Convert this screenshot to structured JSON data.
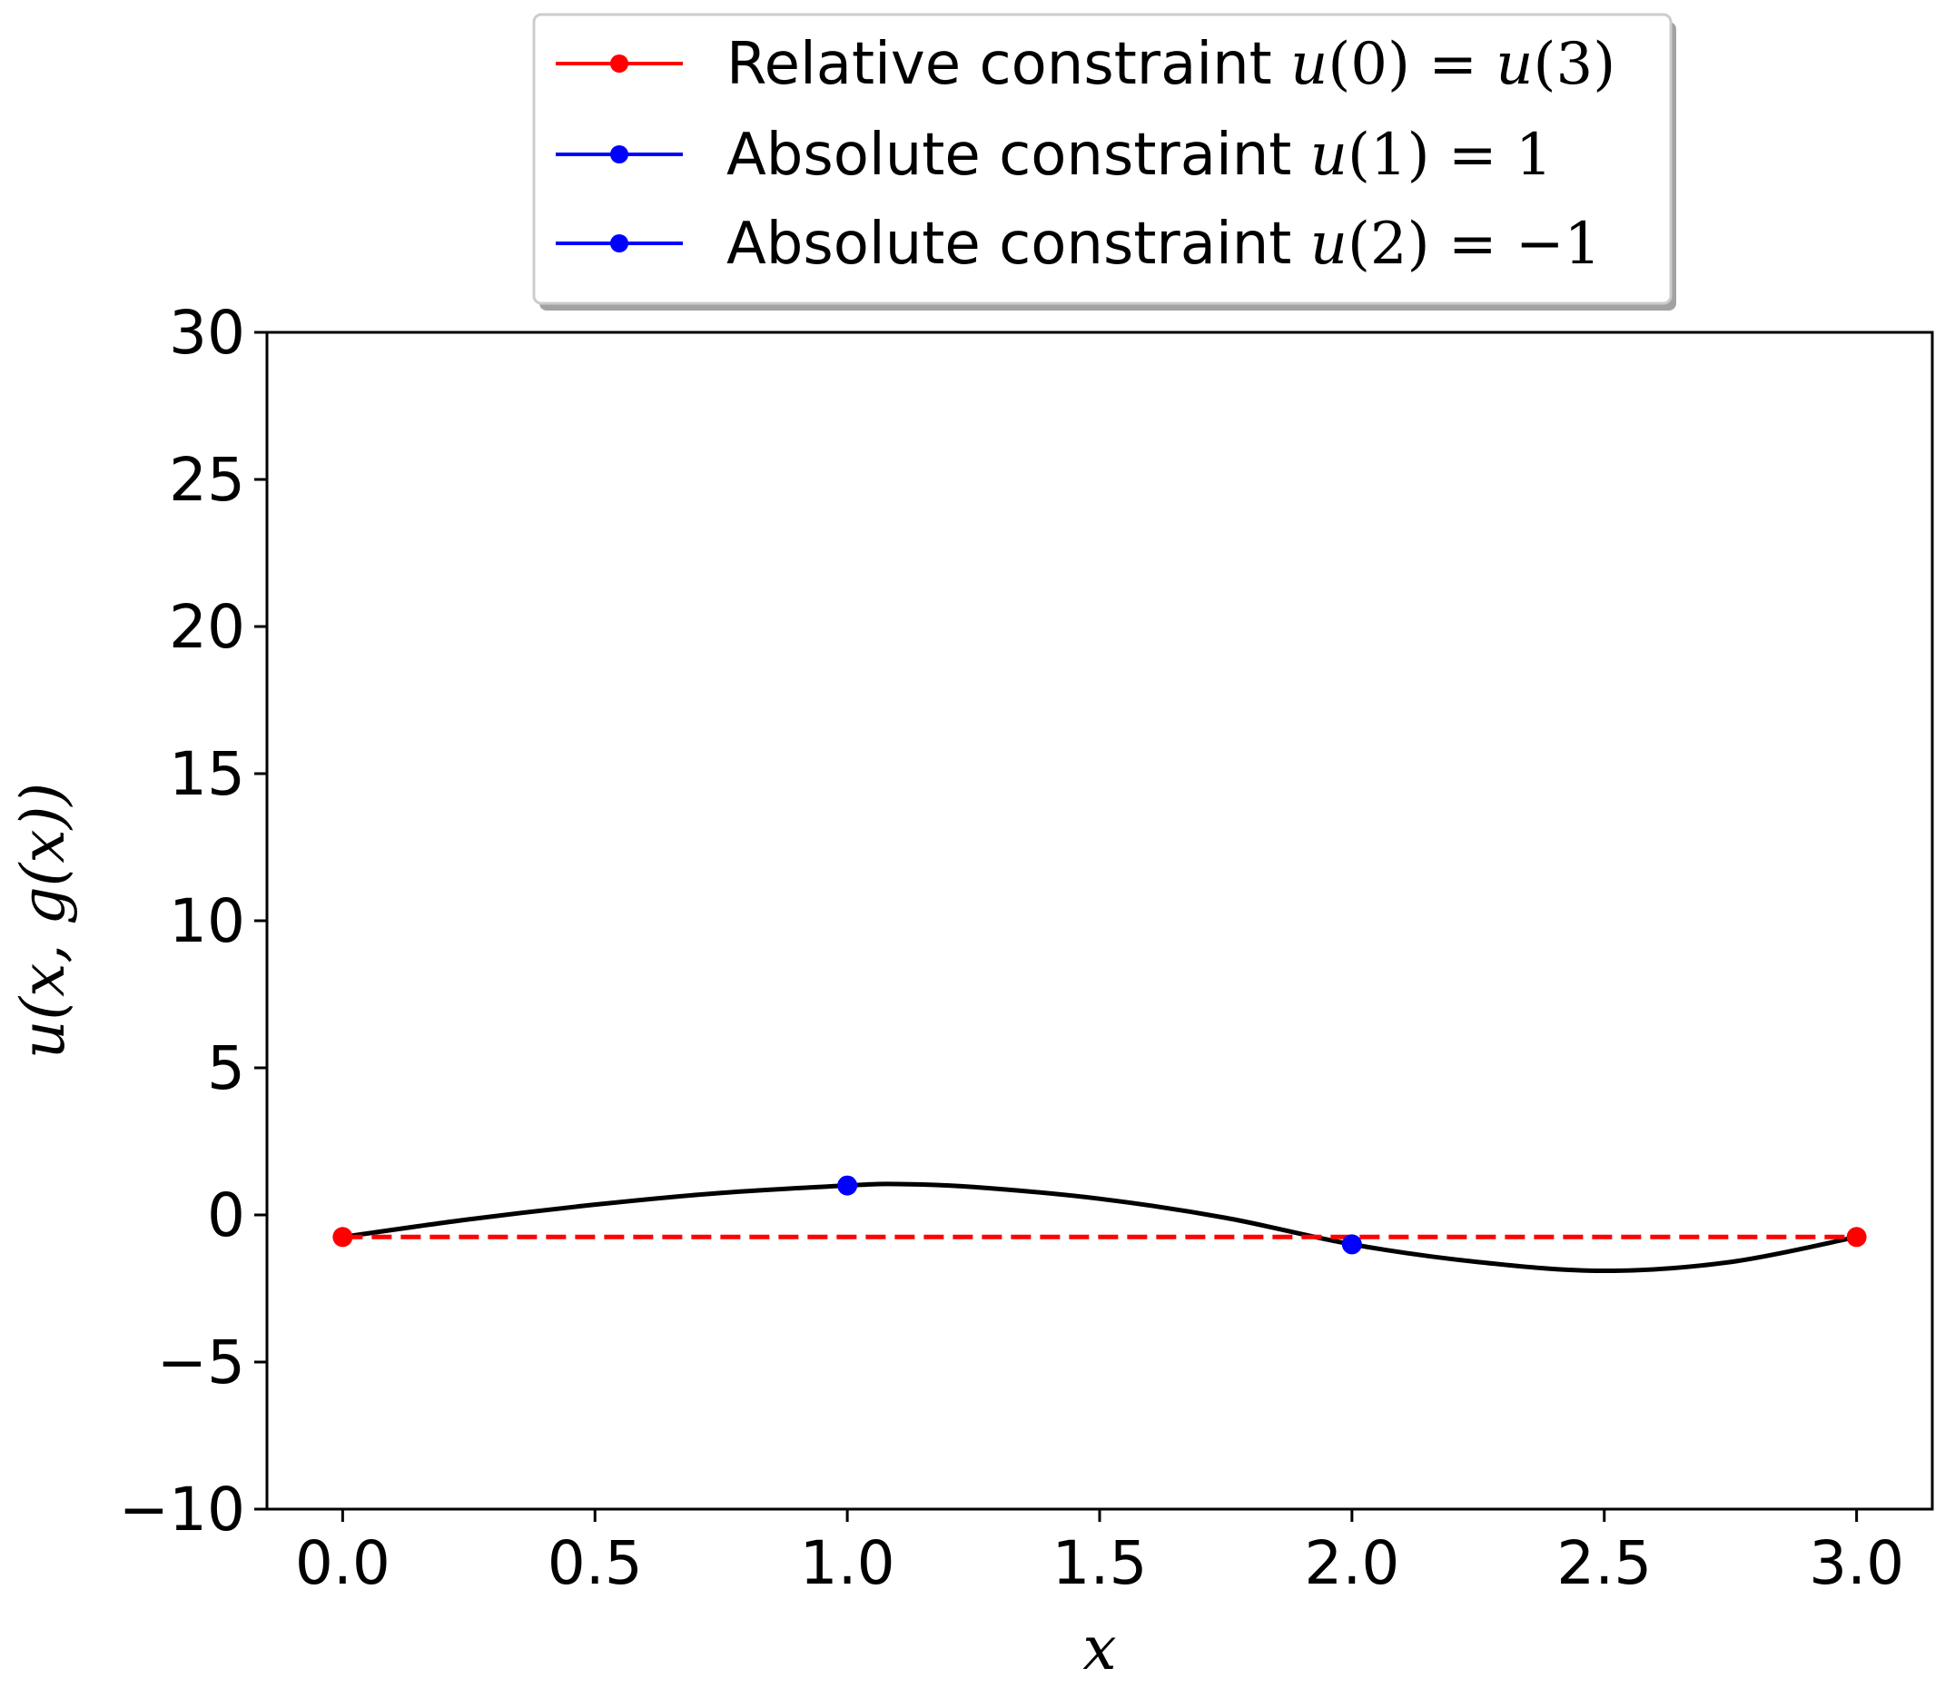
{
  "chart_data": {
    "type": "line",
    "title": "",
    "xlabel": "x",
    "ylabel": "u(x, g(x))",
    "xlim": [
      -0.15,
      3.15
    ],
    "ylim": [
      -10,
      30
    ],
    "xticks": [
      0.0,
      0.5,
      1.0,
      1.5,
      2.0,
      2.5,
      3.0
    ],
    "xtick_labels": [
      "0.0",
      "0.5",
      "1.0",
      "1.5",
      "2.0",
      "2.5",
      "3.0"
    ],
    "yticks": [
      -10,
      -5,
      0,
      5,
      10,
      15,
      20,
      25,
      30
    ],
    "ytick_labels": [
      "−10",
      "−5",
      "0",
      "5",
      "10",
      "15",
      "20",
      "25",
      "30"
    ],
    "grid": false,
    "legend_position": "top-center, outside above plot",
    "curve": {
      "color": "#000000",
      "x": [
        0.0,
        0.25,
        0.5,
        0.75,
        1.0,
        1.1,
        1.25,
        1.5,
        1.75,
        2.0,
        2.25,
        2.5,
        2.75,
        3.0
      ],
      "y": [
        -0.75,
        -0.15,
        0.35,
        0.75,
        1.0,
        1.05,
        0.95,
        0.55,
        -0.1,
        -1.0,
        -1.6,
        -1.9,
        -1.6,
        -0.75
      ]
    },
    "series": [
      {
        "name": "Relative constraint u(0) = u(3)",
        "color": "#ff0000",
        "style": "dashed",
        "x": [
          0.0,
          3.0
        ],
        "y": [
          -0.75,
          -0.75
        ]
      },
      {
        "name": "Absolute constraint u(1) = 1",
        "color": "#0000ff",
        "style": "marker",
        "x": [
          1.0
        ],
        "y": [
          1.0
        ]
      },
      {
        "name": "Absolute constraint u(2) = −1",
        "color": "#0000ff",
        "style": "marker",
        "x": [
          2.0
        ],
        "y": [
          -1.0
        ]
      }
    ]
  },
  "legend": {
    "entries": [
      {
        "label": "Relative constraint u(0) = u(3)",
        "color": "#ff0000"
      },
      {
        "label": "Absolute constraint u(1) = 1",
        "color": "#0000ff"
      },
      {
        "label": "Absolute constraint u(2) = −1",
        "color": "#0000ff"
      }
    ]
  }
}
